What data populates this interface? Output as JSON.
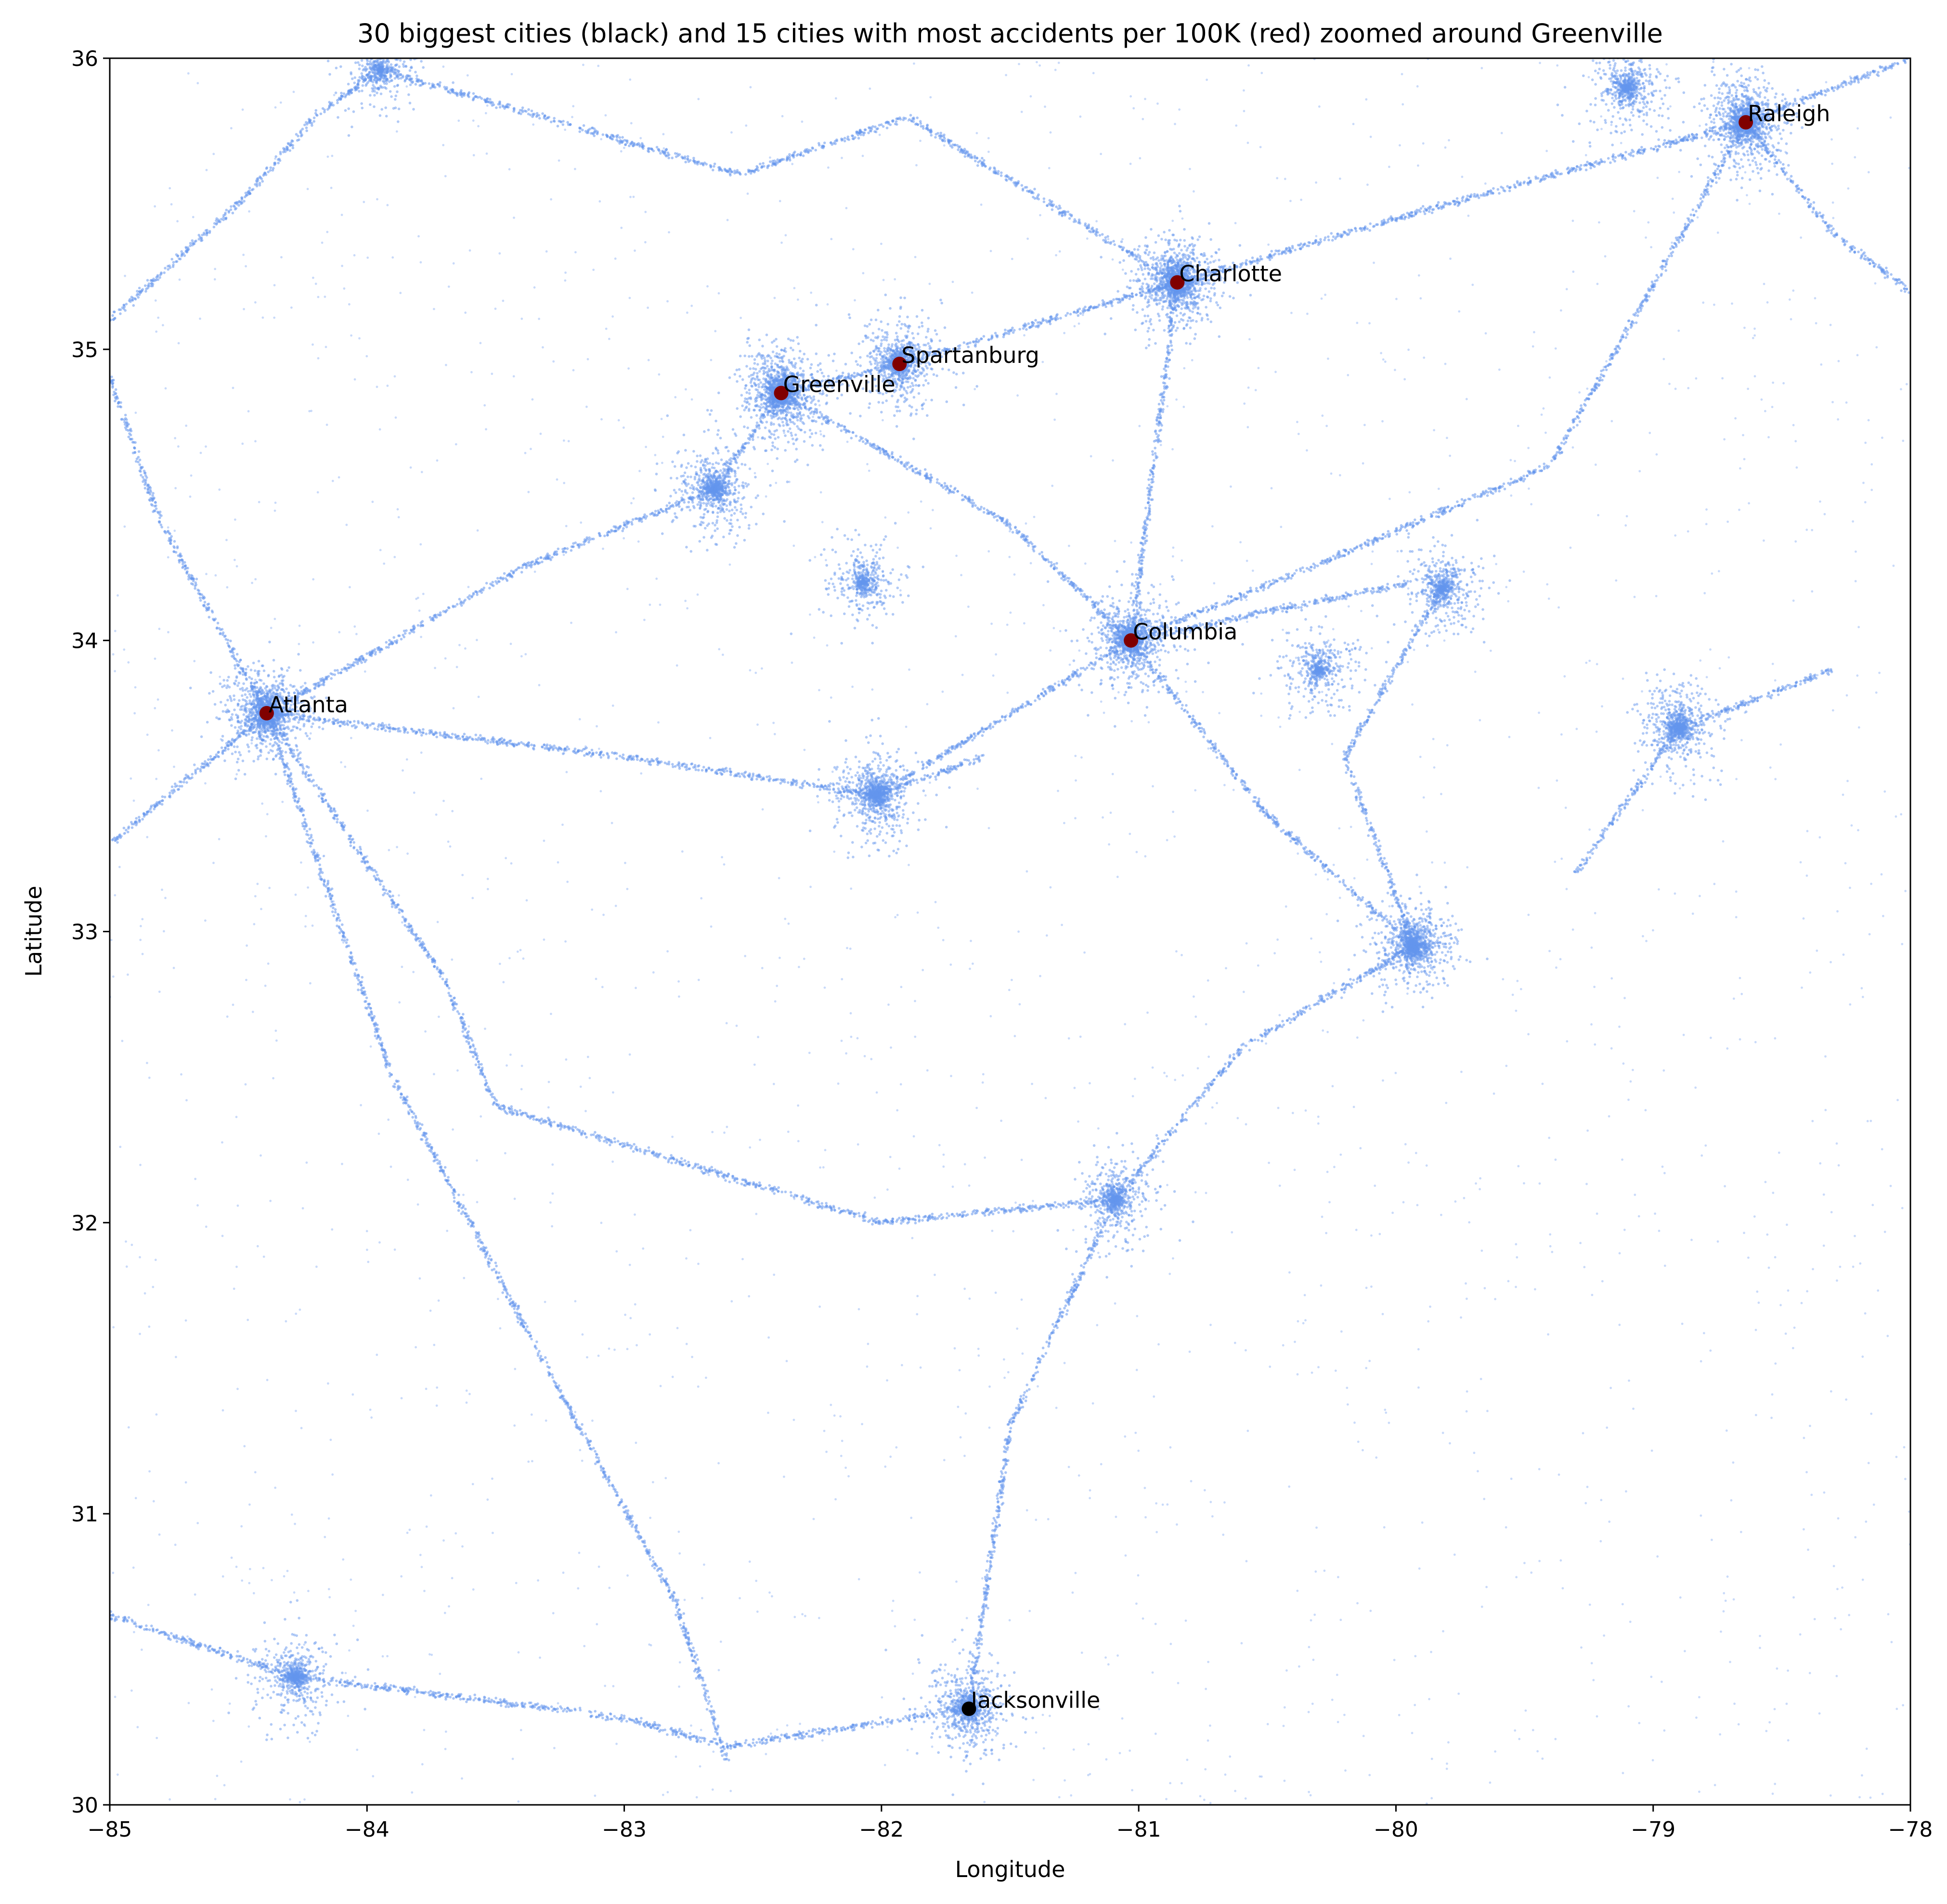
{
  "chart_data": {
    "type": "scatter",
    "title": "30 biggest cities (black) and 15 cities with most accidents per 100K (red) zoomed around Greenville",
    "xlabel": "Longitude",
    "ylabel": "Latitude",
    "xlim": [
      -85,
      -78
    ],
    "ylim": [
      30,
      36
    ],
    "xticks": [
      -85,
      -84,
      -83,
      -82,
      -81,
      -80,
      -79,
      -78
    ],
    "xtick_labels": [
      "−85",
      "−84",
      "−83",
      "−82",
      "−81",
      "−80",
      "−79",
      "−78"
    ],
    "yticks": [
      30,
      31,
      32,
      33,
      34,
      35,
      36
    ],
    "ytick_labels": [
      "30",
      "31",
      "32",
      "33",
      "34",
      "35",
      "36"
    ],
    "grid": false,
    "accident_color": "#6495ED",
    "accident_hubs": [
      {
        "lon": -84.39,
        "lat": 33.75,
        "weight": 9
      },
      {
        "lon": -82.39,
        "lat": 34.85,
        "weight": 10
      },
      {
        "lon": -81.93,
        "lat": 34.95,
        "weight": 6
      },
      {
        "lon": -82.65,
        "lat": 34.52,
        "weight": 5
      },
      {
        "lon": -80.85,
        "lat": 35.23,
        "weight": 10
      },
      {
        "lon": -78.64,
        "lat": 35.78,
        "weight": 9
      },
      {
        "lon": -81.03,
        "lat": 34.0,
        "weight": 8
      },
      {
        "lon": -82.02,
        "lat": 33.47,
        "weight": 6
      },
      {
        "lon": -79.93,
        "lat": 32.95,
        "weight": 7
      },
      {
        "lon": -79.82,
        "lat": 34.18,
        "weight": 4
      },
      {
        "lon": -78.9,
        "lat": 33.7,
        "weight": 5
      },
      {
        "lon": -81.09,
        "lat": 32.08,
        "weight": 4
      },
      {
        "lon": -81.66,
        "lat": 30.33,
        "weight": 6
      },
      {
        "lon": -84.28,
        "lat": 30.44,
        "weight": 4
      },
      {
        "lon": -82.07,
        "lat": 34.2,
        "weight": 3
      },
      {
        "lon": -83.95,
        "lat": 35.96,
        "weight": 3
      },
      {
        "lon": -80.3,
        "lat": 33.9,
        "weight": 3
      },
      {
        "lon": -79.1,
        "lat": 35.9,
        "weight": 4
      }
    ],
    "accident_routes": [
      [
        [
          -85.0,
          35.1
        ],
        [
          -84.5,
          35.5
        ],
        [
          -84.2,
          35.8
        ],
        [
          -83.95,
          35.96
        ]
      ],
      [
        [
          -83.95,
          35.96
        ],
        [
          -82.55,
          35.6
        ],
        [
          -81.9,
          35.8
        ],
        [
          -80.85,
          35.23
        ]
      ],
      [
        [
          -84.39,
          33.75
        ],
        [
          -83.4,
          34.25
        ],
        [
          -82.65,
          34.52
        ],
        [
          -82.39,
          34.85
        ],
        [
          -81.93,
          34.95
        ],
        [
          -80.85,
          35.23
        ],
        [
          -79.8,
          35.5
        ],
        [
          -78.64,
          35.78
        ]
      ],
      [
        [
          -84.39,
          33.75
        ],
        [
          -83.0,
          33.6
        ],
        [
          -82.02,
          33.47
        ],
        [
          -81.03,
          34.0
        ],
        [
          -79.95,
          34.2
        ]
      ],
      [
        [
          -81.03,
          34.0
        ],
        [
          -80.5,
          33.4
        ],
        [
          -79.93,
          32.95
        ]
      ],
      [
        [
          -82.39,
          34.85
        ],
        [
          -81.5,
          34.4
        ],
        [
          -81.03,
          34.0
        ]
      ],
      [
        [
          -80.85,
          35.23
        ],
        [
          -81.03,
          34.0
        ]
      ],
      [
        [
          -81.03,
          34.0
        ],
        [
          -80.2,
          34.3
        ],
        [
          -79.4,
          34.6
        ],
        [
          -78.64,
          35.78
        ]
      ],
      [
        [
          -84.39,
          33.75
        ],
        [
          -83.7,
          32.84
        ],
        [
          -83.5,
          32.4
        ],
        [
          -82.0,
          32.0
        ],
        [
          -81.09,
          32.08
        ],
        [
          -80.6,
          32.6
        ],
        [
          -79.93,
          32.95
        ]
      ],
      [
        [
          -84.39,
          33.75
        ],
        [
          -83.9,
          32.5
        ],
        [
          -83.3,
          31.5
        ],
        [
          -82.8,
          30.7
        ],
        [
          -82.6,
          30.15
        ]
      ],
      [
        [
          -81.09,
          32.08
        ],
        [
          -81.5,
          31.3
        ],
        [
          -81.66,
          30.33
        ]
      ],
      [
        [
          -85.0,
          30.65
        ],
        [
          -84.28,
          30.44
        ],
        [
          -83.0,
          30.3
        ],
        [
          -82.6,
          30.2
        ],
        [
          -81.66,
          30.33
        ]
      ],
      [
        [
          -79.3,
          33.2
        ],
        [
          -78.9,
          33.7
        ],
        [
          -78.3,
          33.9
        ]
      ],
      [
        [
          -79.93,
          32.95
        ],
        [
          -80.2,
          33.6
        ],
        [
          -79.82,
          34.18
        ]
      ],
      [
        [
          -78.64,
          35.78
        ],
        [
          -78.3,
          35.4
        ],
        [
          -78.0,
          35.2
        ]
      ],
      [
        [
          -78.64,
          35.78
        ],
        [
          -78.0,
          36.0
        ]
      ],
      [
        [
          -82.02,
          33.47
        ],
        [
          -81.6,
          33.6
        ]
      ],
      [
        [
          -84.39,
          33.75
        ],
        [
          -85.0,
          33.3
        ]
      ],
      [
        [
          -84.39,
          33.75
        ],
        [
          -84.8,
          34.4
        ],
        [
          -85.0,
          34.9
        ]
      ]
    ],
    "cities": [
      {
        "name": "Raleigh",
        "lon": -78.64,
        "lat": 35.78,
        "color": "#800000"
      },
      {
        "name": "Charlotte",
        "lon": -80.85,
        "lat": 35.23,
        "color": "#800000"
      },
      {
        "name": "Spartanburg",
        "lon": -81.93,
        "lat": 34.95,
        "color": "#800000"
      },
      {
        "name": "Greenville",
        "lon": -82.39,
        "lat": 34.85,
        "color": "#800000"
      },
      {
        "name": "Columbia",
        "lon": -81.03,
        "lat": 34.0,
        "color": "#800000"
      },
      {
        "name": "Atlanta",
        "lon": -84.39,
        "lat": 33.75,
        "color": "#800000"
      },
      {
        "name": "Jacksonville",
        "lon": -81.66,
        "lat": 30.33,
        "color": "#000000"
      }
    ]
  }
}
